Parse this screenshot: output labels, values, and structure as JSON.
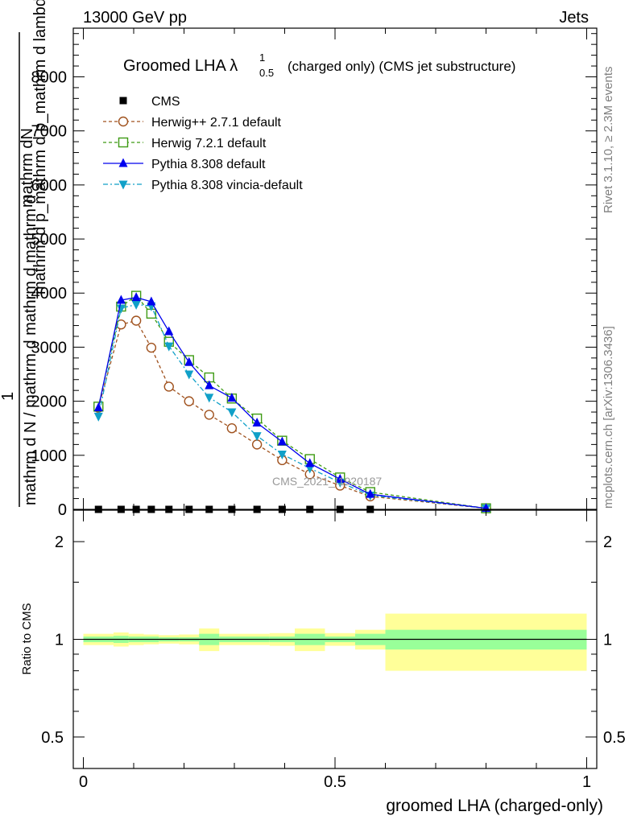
{
  "header": {
    "beam": "13000 GeV pp",
    "category": "Jets"
  },
  "side_text": {
    "generator": "Rivet 3.1.10, ≥ 2.3M events",
    "source": "mcplots.cern.ch [arXiv:1306.3436]"
  },
  "watermark": "CMS_2021_I1920187",
  "chart_data": [
    {
      "type": "line",
      "panel": "main",
      "title": "Groomed LHA λ",
      "title_sup": "1",
      "title_sub": "0.5",
      "title_suffix": "(charged only) (CMS jet substructure)",
      "ylabel_top": "mathrm dN",
      "ylabel_middle": "mathrm d p_mathrm d p_mathrm d lambda",
      "ylabel_numerator": "1",
      "ylabel_bottom": "mathrm d N / mathrm d mathrm d mathrm d",
      "ylim": [
        0,
        8900
      ],
      "xlim": [
        -0.02,
        1.02
      ],
      "yticks": [
        0,
        1000,
        2000,
        3000,
        4000,
        5000,
        6000,
        7000,
        8000
      ],
      "ytick_labels": [
        "0",
        "1000",
        "2000",
        "3000",
        "4000",
        "5000",
        "6000",
        "7000",
        "8000"
      ],
      "x": [
        0.03,
        0.075,
        0.105,
        0.135,
        0.17,
        0.21,
        0.25,
        0.295,
        0.345,
        0.395,
        0.45,
        0.51,
        0.57,
        0.8
      ],
      "series": [
        {
          "name": "CMS",
          "color": "#000000",
          "marker": "square",
          "values": [
            0,
            0,
            0,
            0,
            0,
            0,
            0,
            0,
            0,
            0,
            0,
            0,
            0,
            null
          ]
        },
        {
          "name": "Herwig++ 2.7.1 default",
          "color": "#a0521e",
          "marker": "circle-open",
          "dash": "dashed",
          "values": [
            1880,
            3420,
            3490,
            2990,
            2270,
            2000,
            1750,
            1500,
            1200,
            910,
            650,
            440,
            240,
            20
          ]
        },
        {
          "name": "Herwig 7.2.1 default",
          "color": "#3e9b14",
          "marker": "square-open",
          "dash": "dashed",
          "values": [
            1900,
            3750,
            3950,
            3620,
            3100,
            2760,
            2440,
            2050,
            1680,
            1270,
            930,
            590,
            320,
            20
          ]
        },
        {
          "name": "Pythia 8.308 default",
          "color": "#0000ee",
          "marker": "triangle-up",
          "dash": "solid",
          "values": [
            1880,
            3870,
            3920,
            3840,
            3290,
            2720,
            2290,
            2060,
            1600,
            1250,
            850,
            560,
            280,
            20
          ]
        },
        {
          "name": "Pythia 8.308 vincia-default",
          "color": "#10a0c8",
          "marker": "triangle-down",
          "dash": "dashdot",
          "values": [
            1720,
            3720,
            3790,
            3760,
            3020,
            2500,
            2070,
            1800,
            1360,
            1020,
            760,
            500,
            260,
            20
          ]
        }
      ]
    },
    {
      "type": "area",
      "panel": "ratio",
      "ylabel": "Ratio to CMS",
      "scale": "log",
      "ylim": [
        0.4,
        2.5
      ],
      "yticks": [
        0.5,
        1,
        2
      ],
      "ytick_labels": [
        "0.5",
        "1",
        "2"
      ],
      "xlabel": "groomed LHA (charged-only)",
      "xticks": [
        0,
        0.5,
        1
      ],
      "xtick_labels": [
        "0",
        "0.5",
        "1"
      ],
      "bin_edges": [
        0.0,
        0.06,
        0.09,
        0.12,
        0.15,
        0.19,
        0.23,
        0.27,
        0.32,
        0.37,
        0.42,
        0.48,
        0.54,
        0.6,
        1.0
      ],
      "stat_band": [
        0.02,
        0.025,
        0.02,
        0.02,
        0.015,
        0.015,
        0.04,
        0.02,
        0.02,
        0.02,
        0.04,
        0.02,
        0.04,
        0.07
      ],
      "total_band": [
        0.04,
        0.05,
        0.04,
        0.035,
        0.03,
        0.035,
        0.08,
        0.04,
        0.04,
        0.045,
        0.08,
        0.045,
        0.07,
        0.2
      ],
      "stat_color": "#99ff99",
      "total_color": "#ffff99"
    }
  ]
}
